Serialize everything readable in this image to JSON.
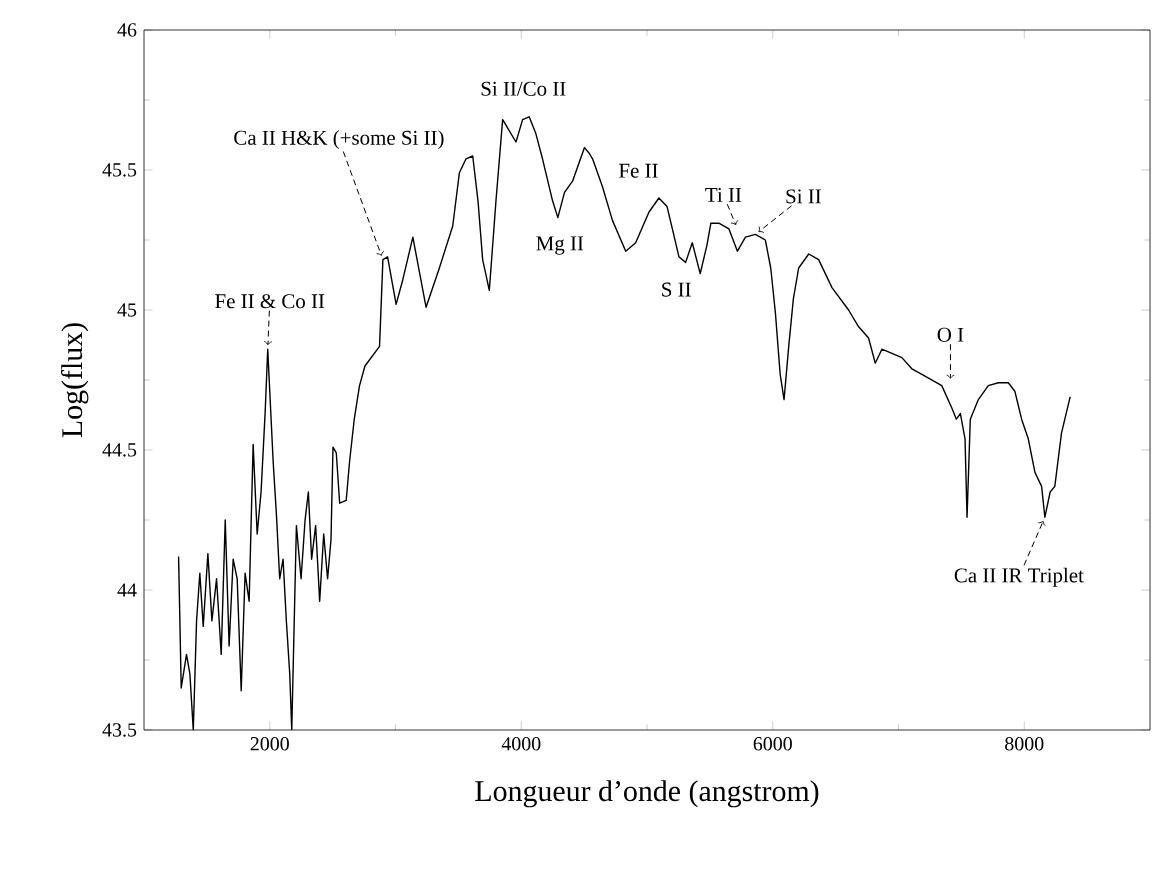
{
  "chart_data": {
    "type": "line",
    "xlabel": "Longueur d’onde (angstrom)",
    "ylabel": "Log(flux)",
    "xlim": [
      1000,
      9000
    ],
    "xticks": [
      2000,
      4000,
      6000,
      8000
    ],
    "ylim": [
      43.5,
      46
    ],
    "yticks": [
      43.5,
      44,
      44.5,
      45,
      45.5,
      46
    ],
    "grid": false,
    "series": [
      {
        "color": "#000000",
        "x": [
          1275,
          1296,
          1338,
          1365,
          1392,
          1418,
          1444,
          1471,
          1508,
          1540,
          1577,
          1614,
          1646,
          1677,
          1709,
          1741,
          1773,
          1804,
          1836,
          1868,
          1900,
          1931,
          1963,
          1984,
          2027,
          2053,
          2079,
          2106,
          2132,
          2159,
          2175,
          2212,
          2249,
          2281,
          2307,
          2333,
          2365,
          2397,
          2429,
          2460,
          2487,
          2503,
          2529,
          2556,
          2608,
          2635,
          2672,
          2714,
          2757,
          2873,
          2900,
          2937,
          3005,
          3059,
          3138,
          3243,
          3349,
          3455,
          3508,
          3561,
          3614,
          3656,
          3693,
          3746,
          3799,
          3852,
          3905,
          3958,
          4011,
          4063,
          4116,
          4169,
          4249,
          4291,
          4344,
          4408,
          4503,
          4540,
          4567,
          4646,
          4725,
          4831,
          4910,
          5016,
          5095,
          5159,
          5212,
          5254,
          5307,
          5360,
          5423,
          5476,
          5508,
          5571,
          5651,
          5719,
          5783,
          5862,
          5941,
          5984,
          6021,
          6059,
          6090,
          6127,
          6164,
          6206,
          6286,
          6365,
          6471,
          6603,
          6683,
          6762,
          6815,
          6868,
          7027,
          7106,
          7186,
          7344,
          7424,
          7460,
          7492,
          7529,
          7545,
          7571,
          7635,
          7714,
          7794,
          7873,
          7925,
          7979,
          8032,
          8085,
          8138,
          8164,
          8206,
          8243,
          8296,
          8365
        ],
        "values": [
          44.12,
          43.65,
          43.77,
          43.7,
          43.5,
          43.89,
          44.06,
          43.87,
          44.13,
          43.89,
          44.04,
          43.77,
          44.25,
          43.8,
          44.11,
          44.04,
          43.64,
          44.06,
          43.96,
          44.52,
          44.2,
          44.35,
          44.63,
          44.86,
          44.46,
          44.27,
          44.04,
          44.11,
          43.89,
          43.7,
          43.5,
          44.23,
          44.04,
          44.25,
          44.35,
          44.11,
          44.23,
          43.96,
          44.2,
          44.04,
          44.18,
          44.51,
          44.49,
          44.31,
          44.32,
          44.46,
          44.61,
          44.73,
          44.8,
          44.87,
          45.18,
          45.19,
          45.02,
          45.11,
          45.26,
          45.01,
          45.15,
          45.3,
          45.49,
          45.54,
          45.55,
          45.39,
          45.18,
          45.07,
          45.39,
          45.68,
          45.64,
          45.6,
          45.68,
          45.69,
          45.63,
          45.54,
          45.39,
          45.33,
          45.42,
          45.46,
          45.58,
          45.56,
          45.54,
          45.44,
          45.32,
          45.21,
          45.24,
          45.35,
          45.4,
          45.37,
          45.27,
          45.19,
          45.17,
          45.24,
          45.13,
          45.23,
          45.31,
          45.31,
          45.29,
          45.21,
          45.26,
          45.27,
          45.25,
          45.15,
          44.99,
          44.77,
          44.68,
          44.87,
          45.04,
          45.15,
          45.2,
          45.18,
          45.08,
          45.0,
          44.94,
          44.9,
          44.81,
          44.86,
          44.83,
          44.79,
          44.77,
          44.73,
          44.65,
          44.61,
          44.63,
          44.54,
          44.26,
          44.61,
          44.68,
          44.73,
          44.74,
          44.74,
          44.71,
          44.61,
          44.54,
          44.42,
          44.37,
          44.26,
          44.35,
          44.37,
          44.56,
          44.69
        ]
      }
    ],
    "annotations": [
      {
        "text": "Ca II H&K (+some Si II)",
        "x": 2900,
        "y": 45.18
      },
      {
        "text": "Si II/Co II",
        "x": 4000,
        "y": 45.69
      },
      {
        "text": "Mg II",
        "x": 4291,
        "y": 45.33
      },
      {
        "text": "Fe II",
        "x": 4646,
        "y": 45.44
      },
      {
        "text": "S II",
        "x": 5423,
        "y": 45.13
      },
      {
        "text": "Ti II",
        "x": 5719,
        "y": 45.29
      },
      {
        "text": "Si II",
        "x": 5862,
        "y": 45.27
      },
      {
        "text": "Fe II & Co II",
        "x": 1984,
        "y": 44.86
      },
      {
        "text": "O I",
        "x": 7413,
        "y": 44.74
      },
      {
        "text": "Ca II IR Triplet",
        "x": 8164,
        "y": 44.26
      }
    ]
  }
}
